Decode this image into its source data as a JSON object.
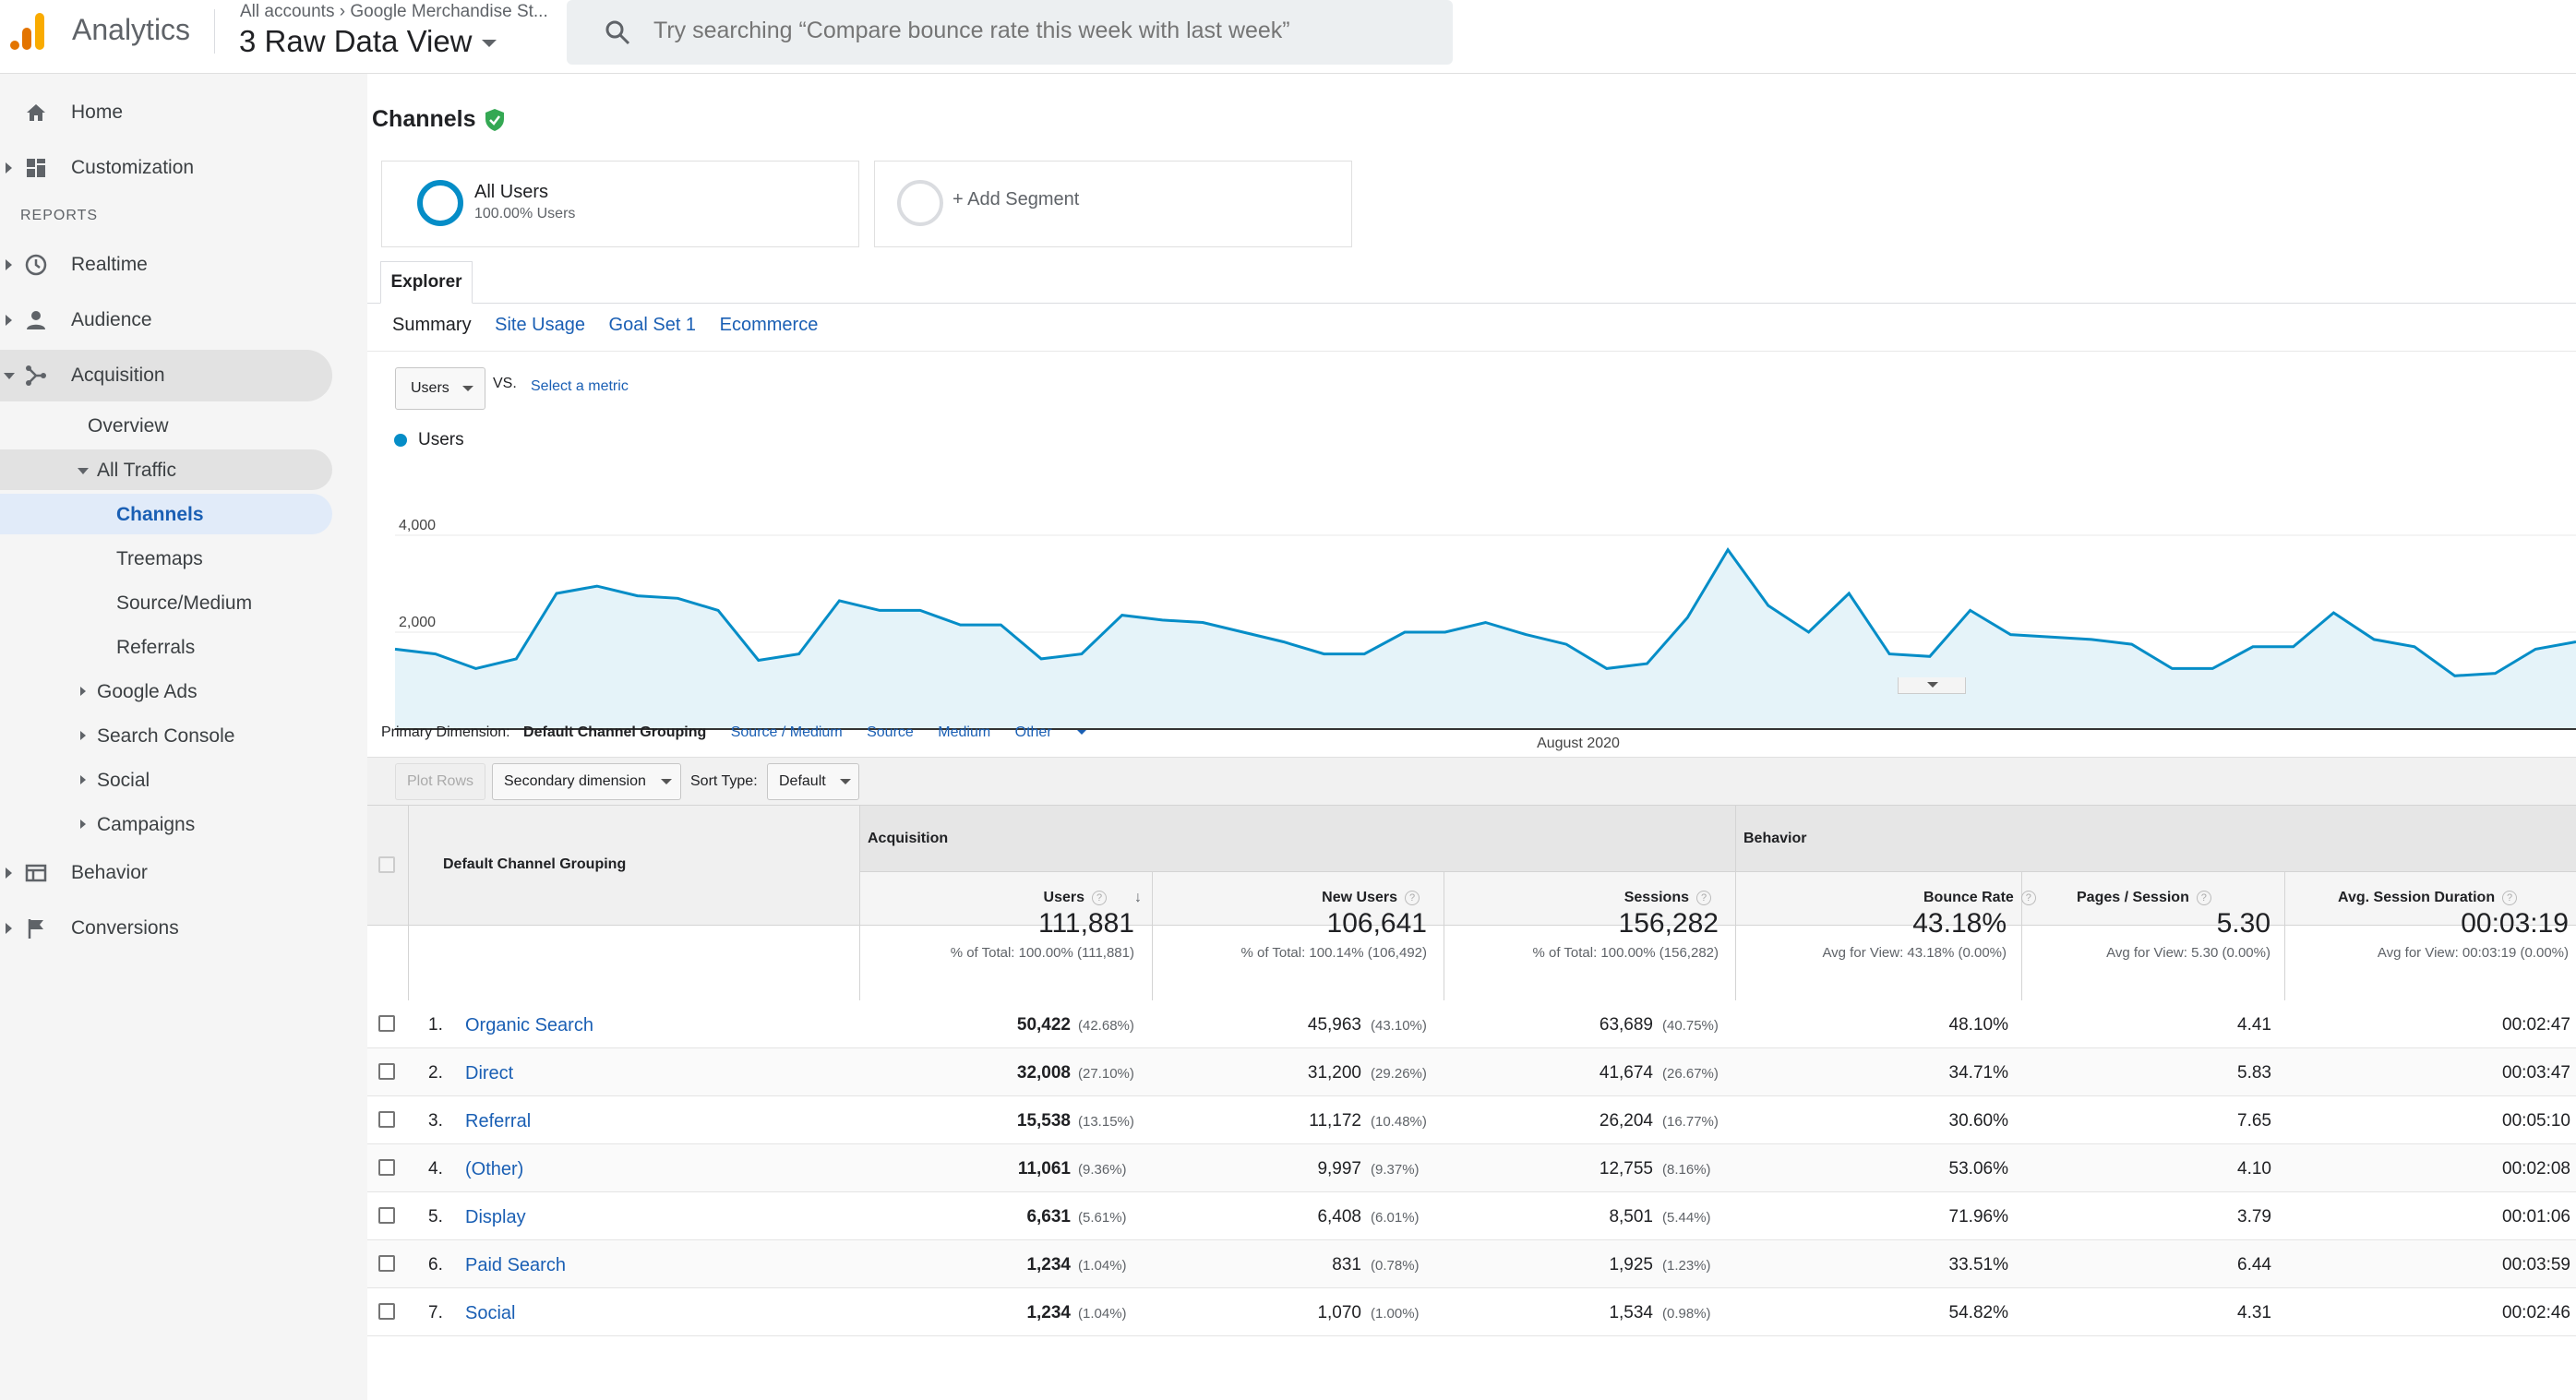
{
  "header": {
    "app_name": "Analytics",
    "breadcrumb": "All accounts",
    "property": "Google Merchandise St...",
    "view_name": "3 Raw Data View",
    "search_placeholder": "Try searching “Compare bounce rate this week with last week”"
  },
  "sidebar": {
    "reports_heading": "REPORTS",
    "home": "Home",
    "customization": "Customization",
    "realtime": "Realtime",
    "audience": "Audience",
    "acquisition": "Acquisition",
    "overview": "Overview",
    "all_traffic": "All Traffic",
    "channels": "Channels",
    "treemaps": "Treemaps",
    "source_medium": "Source/Medium",
    "referrals": "Referrals",
    "google_ads": "Google Ads",
    "search_console": "Search Console",
    "social": "Social",
    "campaigns": "Campaigns",
    "behavior": "Behavior",
    "conversions": "Conversions"
  },
  "page": {
    "title": "Channels",
    "segment_all_title": "All Users",
    "segment_all_sub": "100.00% Users",
    "segment_add": "+ Add Segment",
    "explorer_tab": "Explorer",
    "subtabs": [
      "Summary",
      "Site Usage",
      "Goal Set 1",
      "Ecommerce"
    ],
    "metric_select": "Users",
    "vs": "VS.",
    "select_metric": "Select a metric"
  },
  "chart_data": {
    "type": "area",
    "series": [
      {
        "name": "Users",
        "values": [
          1650,
          1550,
          1250,
          1450,
          2800,
          2950,
          2750,
          2700,
          2450,
          1420,
          1550,
          2650,
          2450,
          2450,
          2150,
          2150,
          1450,
          1550,
          2350,
          2250,
          2200,
          2000,
          1800,
          1550,
          1550,
          2000,
          2000,
          2200,
          1950,
          1750,
          1250,
          1350,
          2300,
          3700,
          2550,
          2000,
          2800,
          1550,
          1500,
          2450,
          1950,
          1900,
          1850,
          1750,
          1250,
          1250,
          1700,
          1700,
          2400,
          1850,
          1700,
          1100,
          1150,
          1650,
          1800
        ]
      }
    ],
    "y_ticks": [
      "4,000",
      "2,000"
    ],
    "ylim": [
      0,
      4000
    ],
    "x_label": "August 2020",
    "grid": true,
    "legend": "top-left",
    "color": "#058dc7",
    "fill": "#e5f3f9"
  },
  "table": {
    "primary_dimension_label": "Primary Dimension:",
    "primary_options": [
      "Default Channel Grouping",
      "Source / Medium",
      "Source",
      "Medium",
      "Other"
    ],
    "plot_rows": "Plot Rows",
    "secondary_dimension": "Secondary dimension",
    "sort_type_label": "Sort Type:",
    "sort_type": "Default",
    "dimension_header": "Default Channel Grouping",
    "group_acquisition": "Acquisition",
    "group_behavior": "Behavior",
    "columns": [
      "Users",
      "New Users",
      "Sessions",
      "Bounce Rate",
      "Pages / Session",
      "Avg. Session Duration"
    ],
    "totals": [
      {
        "value": "111,881",
        "sub": "% of Total: 100.00% (111,881)"
      },
      {
        "value": "106,641",
        "sub": "% of Total: 100.14% (106,492)"
      },
      {
        "value": "156,282",
        "sub": "% of Total: 100.00% (156,282)"
      },
      {
        "value": "43.18%",
        "sub": "Avg for View: 43.18% (0.00%)"
      },
      {
        "value": "5.30",
        "sub": "Avg for View: 5.30 (0.00%)"
      },
      {
        "value": "00:03:19",
        "sub": "Avg for View: 00:03:19 (0.00%)"
      }
    ],
    "rows": [
      {
        "num": "1.",
        "name": "Organic Search",
        "users": "50,422",
        "users_pct": "(42.68%)",
        "new_users": "45,963",
        "new_users_pct": "(43.10%)",
        "sessions": "63,689",
        "sessions_pct": "(40.75%)",
        "bounce": "48.10%",
        "pages": "4.41",
        "duration": "00:02:47"
      },
      {
        "num": "2.",
        "name": "Direct",
        "users": "32,008",
        "users_pct": "(27.10%)",
        "new_users": "31,200",
        "new_users_pct": "(29.26%)",
        "sessions": "41,674",
        "sessions_pct": "(26.67%)",
        "bounce": "34.71%",
        "pages": "5.83",
        "duration": "00:03:47"
      },
      {
        "num": "3.",
        "name": "Referral",
        "users": "15,538",
        "users_pct": "(13.15%)",
        "new_users": "11,172",
        "new_users_pct": "(10.48%)",
        "sessions": "26,204",
        "sessions_pct": "(16.77%)",
        "bounce": "30.60%",
        "pages": "7.65",
        "duration": "00:05:10"
      },
      {
        "num": "4.",
        "name": "(Other)",
        "users": "11,061",
        "users_pct": "(9.36%)",
        "new_users": "9,997",
        "new_users_pct": "(9.37%)",
        "sessions": "12,755",
        "sessions_pct": "(8.16%)",
        "bounce": "53.06%",
        "pages": "4.10",
        "duration": "00:02:08"
      },
      {
        "num": "5.",
        "name": "Display",
        "users": "6,631",
        "users_pct": "(5.61%)",
        "new_users": "6,408",
        "new_users_pct": "(6.01%)",
        "sessions": "8,501",
        "sessions_pct": "(5.44%)",
        "bounce": "71.96%",
        "pages": "3.79",
        "duration": "00:01:06"
      },
      {
        "num": "6.",
        "name": "Paid Search",
        "users": "1,234",
        "users_pct": "(1.04%)",
        "new_users": "831",
        "new_users_pct": "(0.78%)",
        "sessions": "1,925",
        "sessions_pct": "(1.23%)",
        "bounce": "33.51%",
        "pages": "6.44",
        "duration": "00:03:59"
      },
      {
        "num": "7.",
        "name": "Social",
        "users": "1,234",
        "users_pct": "(1.04%)",
        "new_users": "1,070",
        "new_users_pct": "(1.00%)",
        "sessions": "1,534",
        "sessions_pct": "(0.98%)",
        "bounce": "54.82%",
        "pages": "4.31",
        "duration": "00:02:46"
      }
    ]
  }
}
